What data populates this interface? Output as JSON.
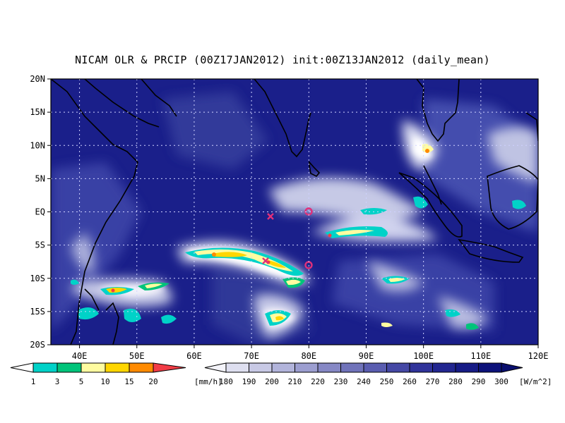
{
  "title": "NICAM OLR & PRCIP (00Z17JAN2012) init:00Z13JAN2012 (daily_mean)",
  "map": {
    "lon_range": [
      35,
      120
    ],
    "lat_range": [
      -20,
      20
    ],
    "lat_ticks": [
      "20N",
      "15N",
      "10N",
      "5N",
      "EQ",
      "5S",
      "10S",
      "15S",
      "20S"
    ],
    "lon_ticks": [
      "40E",
      "50E",
      "60E",
      "70E",
      "80E",
      "90E",
      "100E",
      "110E",
      "120E"
    ],
    "grid": true,
    "markers": [
      {
        "type": "x-mark",
        "lon": 71.5,
        "lat": -0.8,
        "color": "#e0307a"
      },
      {
        "type": "circle",
        "lon": 80,
        "lat": 0,
        "color": "#e0307a"
      },
      {
        "type": "x-mark",
        "lon": 73,
        "lat": -7.2,
        "color": "#e0307a"
      },
      {
        "type": "circle",
        "lon": 80,
        "lat": -7.8,
        "color": "#e0307a"
      }
    ]
  },
  "precip_legend": {
    "labels": [
      "1",
      "3",
      "5",
      "10",
      "15",
      "20"
    ],
    "unit": "[mm/h]",
    "colors": [
      "#00d2c8",
      "#00c47a",
      "#fffca0",
      "#ffd600",
      "#ff8a00",
      "#f23c46"
    ]
  },
  "olr_legend": {
    "labels": [
      "180",
      "190",
      "200",
      "210",
      "220",
      "230",
      "240",
      "250",
      "260",
      "270",
      "280",
      "290",
      "300"
    ],
    "unit": "[W/m^2]",
    "colors": [
      "#f4f4fa",
      "#dedff0",
      "#c8c9e5",
      "#b2b4db",
      "#9c9ed0",
      "#8688c5",
      "#7073ba",
      "#5a5db0",
      "#4548a5",
      "#30339a",
      "#222690",
      "#161b86",
      "#0c127a",
      "#0a0f6e"
    ]
  }
}
